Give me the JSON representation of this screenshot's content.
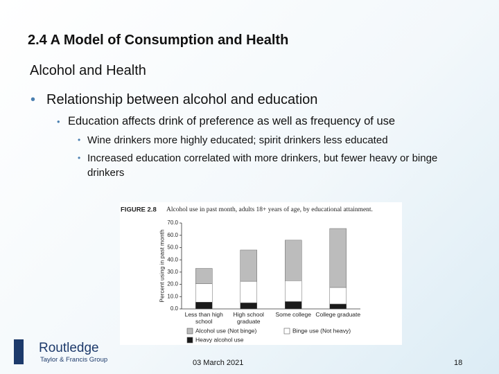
{
  "header": {
    "title": "2.4  A Model of Consumption and Health",
    "subtitle": "Alcohol and Health"
  },
  "bullets": {
    "level1": "Relationship between alcohol and education",
    "level2": "Education affects drink of preference as well as frequency of use",
    "level3": [
      "Wine drinkers more highly educated; spirit drinkers less educated",
      "Increased education correlated with more drinkers, but fewer heavy or binge drinkers"
    ]
  },
  "chart_data": {
    "type": "stacked-bar",
    "figure_label": "FIGURE 2.8",
    "title": "Alcohol use in past month, adults 18+ years of age, by educational attainment.",
    "y_label": "Percent using in past month",
    "categories": [
      "Less than high school",
      "High school graduate",
      "Some college",
      "College graduate"
    ],
    "series": [
      {
        "name": "Heavy alcohol use",
        "color": "#1a1a1a",
        "values": [
          5.5,
          5,
          6,
          4
        ]
      },
      {
        "name": "Binge use (Not heavy)",
        "color": "#ffffff",
        "values": [
          15,
          17.5,
          17,
          13.5
        ]
      },
      {
        "name": "Alcohol use (Not binge)",
        "color": "#bcbcbc",
        "values": [
          12.5,
          25.5,
          33,
          48
        ]
      }
    ],
    "ylim": [
      0,
      70
    ],
    "yticks": [
      {
        "value": 0,
        "label": "0.0"
      },
      {
        "value": 10,
        "label": "10.0"
      },
      {
        "value": 20,
        "label": "20.0"
      },
      {
        "value": 30,
        "label": "30.0"
      },
      {
        "value": 40,
        "label": "40.0"
      },
      {
        "value": 50,
        "label": "50.0"
      },
      {
        "value": 60,
        "label": "60.0"
      },
      {
        "value": 70,
        "label": "70.0"
      }
    ]
  },
  "footer": {
    "date": "03 March 2021",
    "page": "18",
    "publisher": "Routledge",
    "group": "Taylor & Francis Group"
  }
}
